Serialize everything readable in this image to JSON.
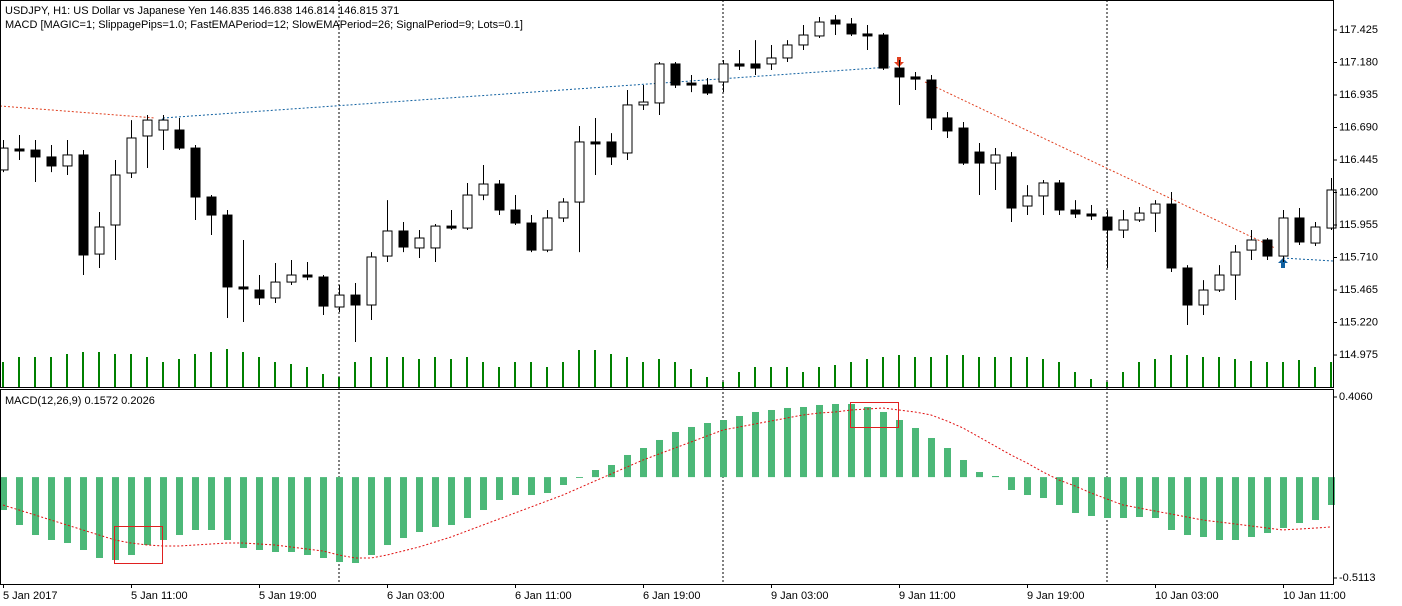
{
  "chart_data": [
    {
      "type": "candlestick",
      "title": "USDJPY, H1:  US Dollar vs Japanese Yen  146.835 146.838 146.814 146.815  371",
      "subtitle": "MACD [MAGIC=1; SlippagePips=1.0; FastEMAPeriod=12; SlowEMAPeriod=26; SignalPeriod=9; Lots=0.1]",
      "categories": [
        "5 Jan 2017",
        null,
        null,
        null,
        null,
        null,
        null,
        null,
        "5 Jan 11:00",
        null,
        null,
        null,
        null,
        null,
        null,
        null,
        "5 Jan 19:00",
        null,
        null,
        null,
        null,
        null,
        null,
        null,
        "6 Jan 03:00",
        null,
        null,
        null,
        null,
        null,
        null,
        null,
        "6 Jan 11:00",
        null,
        null,
        null,
        null,
        null,
        null,
        null,
        "6 Jan 19:00",
        null,
        null,
        null,
        null,
        null,
        null,
        null,
        "9 Jan 03:00",
        null,
        null,
        null,
        null,
        null,
        null,
        null,
        "9 Jan 11:00",
        null,
        null,
        null,
        null,
        null,
        null,
        null,
        "9 Jan 19:00",
        null,
        null,
        null,
        null,
        null,
        null,
        null,
        "10 Jan 03:00",
        null,
        null,
        null,
        null,
        null,
        null,
        null,
        "10 Jan 11:00",
        null,
        null,
        null
      ],
      "open": [
        116.37,
        116.528,
        116.52,
        116.468,
        116.4,
        116.483,
        115.736,
        115.955,
        116.347,
        116.626,
        116.671,
        116.671,
        116.535,
        116.166,
        116.03,
        115.488,
        115.465,
        115.405,
        115.525,
        115.578,
        115.563,
        115.337,
        115.427,
        115.352,
        115.721,
        115.91,
        115.782,
        115.782,
        115.947,
        115.932,
        116.181,
        116.264,
        116.068,
        115.97,
        115.766,
        116.008,
        116.128,
        116.581,
        116.581,
        116.498,
        116.86,
        116.875,
        117.169,
        117.025,
        117.01,
        117.033,
        117.169,
        117.169,
        117.169,
        117.214,
        117.312,
        117.38,
        117.5,
        117.47,
        117.395,
        117.387,
        117.138,
        117.071,
        117.048,
        116.762,
        116.686,
        116.505,
        116.422,
        116.468,
        116.098,
        116.174,
        116.272,
        116.068,
        116.038,
        116.015,
        115.917,
        115.993,
        116.045,
        116.113,
        115.631,
        115.352,
        115.465,
        115.578,
        115.766,
        115.842,
        115.721,
        116.008,
        115.819,
        115.932
      ],
      "high": [
        116.596,
        116.633,
        116.596,
        116.558,
        116.596,
        116.52,
        116.053,
        116.445,
        116.746,
        116.784,
        116.784,
        116.762,
        116.558,
        116.181,
        116.068,
        115.842,
        115.578,
        115.669,
        115.691,
        115.676,
        115.578,
        115.503,
        115.518,
        115.751,
        116.143,
        115.978,
        115.917,
        115.963,
        116.068,
        116.272,
        116.407,
        116.294,
        116.181,
        116.03,
        116.068,
        116.158,
        116.701,
        116.762,
        116.648,
        116.973,
        117.01,
        117.184,
        117.184,
        117.086,
        117.063,
        117.199,
        117.274,
        117.349,
        117.312,
        117.349,
        117.463,
        117.523,
        117.538,
        117.515,
        117.463,
        117.402,
        117.199,
        117.108,
        117.086,
        116.807,
        116.731,
        116.573,
        116.535,
        116.505,
        116.256,
        116.294,
        116.294,
        116.143,
        116.106,
        116.068,
        116.068,
        116.091,
        116.143,
        116.204,
        115.653,
        115.54,
        115.653,
        115.804,
        115.917,
        115.857,
        116.068,
        116.083,
        115.978,
        116.309
      ],
      "low": [
        116.354,
        116.445,
        116.279,
        116.354,
        116.332,
        115.578,
        115.631,
        115.691,
        116.309,
        116.385,
        116.52,
        116.52,
        115.993,
        115.88,
        115.254,
        115.224,
        115.352,
        115.367,
        115.503,
        115.54,
        115.277,
        115.299,
        115.073,
        115.239,
        115.676,
        115.751,
        115.706,
        115.676,
        115.917,
        115.917,
        116.143,
        116.03,
        115.955,
        115.751,
        115.751,
        115.978,
        115.751,
        116.332,
        116.407,
        116.445,
        116.822,
        116.784,
        116.988,
        116.957,
        116.935,
        116.957,
        117.123,
        117.086,
        117.123,
        117.184,
        117.274,
        117.365,
        117.387,
        117.38,
        117.274,
        117.123,
        116.86,
        116.973,
        116.671,
        116.611,
        116.407,
        116.181,
        116.219,
        115.978,
        116.03,
        116.03,
        116.03,
        116.008,
        115.993,
        115.631,
        115.857,
        115.978,
        115.902,
        115.601,
        115.201,
        115.277,
        115.45,
        115.39,
        115.691,
        115.691,
        115.676,
        115.804,
        115.797,
        115.917
      ],
      "close": [
        116.535,
        116.513,
        116.468,
        116.4,
        116.483,
        115.729,
        115.94,
        116.332,
        116.611,
        116.746,
        116.746,
        116.535,
        116.166,
        116.03,
        115.488,
        115.473,
        115.405,
        115.525,
        115.578,
        115.563,
        115.344,
        115.427,
        115.352,
        115.714,
        115.91,
        115.789,
        115.857,
        115.947,
        115.932,
        116.181,
        116.264,
        116.068,
        115.97,
        115.766,
        116.008,
        116.128,
        116.581,
        116.566,
        116.468,
        116.86,
        116.882,
        117.169,
        117.01,
        117.01,
        116.95,
        117.169,
        117.153,
        117.138,
        117.214,
        117.312,
        117.387,
        117.485,
        117.47,
        117.395,
        117.38,
        117.138,
        117.071,
        117.055,
        116.762,
        116.664,
        116.422,
        116.422,
        116.483,
        116.083,
        116.174,
        116.272,
        116.068,
        116.038,
        116.023,
        115.917,
        115.993,
        116.045,
        116.113,
        115.631,
        115.352,
        115.465,
        115.578,
        115.751,
        115.842,
        115.721,
        116.008,
        115.827,
        115.94,
        116.219
      ],
      "volume": [
        375,
        450,
        450,
        450,
        495,
        525,
        525,
        495,
        495,
        450,
        375,
        420,
        495,
        525,
        570,
        525,
        450,
        375,
        345,
        300,
        195,
        150,
        375,
        450,
        450,
        450,
        420,
        450,
        420,
        450,
        375,
        300,
        375,
        375,
        300,
        375,
        555,
        555,
        495,
        450,
        375,
        420,
        375,
        270,
        150,
        75,
        225,
        300,
        300,
        300,
        225,
        300,
        330,
        375,
        420,
        450,
        480,
        450,
        450,
        480,
        480,
        450,
        450,
        450,
        450,
        420,
        375,
        225,
        120,
        75,
        225,
        375,
        420,
        480,
        480,
        450,
        450,
        420,
        390,
        375,
        375,
        405,
        300,
        375
      ],
      "up_color": "#ffffff",
      "down_color": "#000000",
      "volume_color": "#008000",
      "ylim": [
        114.734,
        117.651
      ],
      "yticks": [
        117.425,
        {
          "value": 117.18,
          "label": "117.180"
        },
        116.935,
        {
          "value": 116.69,
          "label": "116.690"
        },
        116.445,
        {
          "value": 116.2,
          "label": "116.200"
        },
        115.955,
        {
          "value": 115.71,
          "label": "115.710"
        },
        115.465,
        {
          "value": 115.22,
          "label": "115.220"
        },
        114.975
      ]
    },
    {
      "type": "macd",
      "title": "MACD(12,26,9) 0.1572 0.2026",
      "values": [
        -0.1667,
        -0.2427,
        -0.2934,
        -0.3187,
        -0.3339,
        -0.3694,
        -0.4099,
        -0.4201,
        -0.3947,
        -0.3441,
        -0.3187,
        -0.2934,
        -0.268,
        -0.268,
        -0.3187,
        -0.3593,
        -0.3694,
        -0.3795,
        -0.3795,
        -0.3947,
        -0.4099,
        -0.4302,
        -0.4353,
        -0.3947,
        -0.3441,
        -0.3086,
        -0.2782,
        -0.2528,
        -0.2427,
        -0.2072,
        -0.1667,
        -0.116,
        -0.0907,
        -0.0907,
        -0.0805,
        -0.04,
        -0.0045,
        0.036,
        0.0614,
        0.1121,
        0.1475,
        0.1881,
        0.2286,
        0.254,
        0.2742,
        0.2894,
        0.3097,
        0.33,
        0.3401,
        0.3503,
        0.3553,
        0.3655,
        0.3705,
        0.3705,
        0.3553,
        0.33,
        0.2894,
        0.2489,
        0.1982,
        0.1475,
        0.0867,
        0.0259,
        0.0056,
        -0.0653,
        -0.0907,
        -0.1059,
        -0.1413,
        -0.1819,
        -0.1971,
        -0.2072,
        -0.2072,
        -0.2022,
        -0.2072,
        -0.268,
        -0.2934,
        -0.3035,
        -0.3187,
        -0.3187,
        -0.3035,
        -0.2832,
        -0.2579,
        -0.2326,
        -0.2174,
        -0.1413
      ],
      "color": "#4cb878",
      "signal": [
        -0.1413,
        -0.1667,
        -0.192,
        -0.2174,
        -0.2427,
        -0.268,
        -0.2934,
        -0.3187,
        -0.3339,
        -0.3441,
        -0.3491,
        -0.3491,
        -0.3441,
        -0.339,
        -0.3339,
        -0.3339,
        -0.339,
        -0.3441,
        -0.3542,
        -0.3643,
        -0.3745,
        -0.3947,
        -0.4099,
        -0.4099,
        -0.3947,
        -0.3745,
        -0.3542,
        -0.3289,
        -0.3035,
        -0.2731,
        -0.2427,
        -0.2123,
        -0.1819,
        -0.1515,
        -0.1211,
        -0.0907,
        -0.0552,
        -0.0197,
        0.0158,
        0.0512,
        0.0867,
        0.1171,
        0.1475,
        0.1779,
        0.2083,
        0.2388,
        0.254,
        0.2692,
        0.2844,
        0.2996,
        0.3148,
        0.3249,
        0.33,
        0.3401,
        0.3452,
        0.3503,
        0.3401,
        0.33,
        0.3148,
        0.2844,
        0.2489,
        0.2033,
        0.1577,
        0.1121,
        0.0715,
        0.0259,
        -0.0146,
        -0.0451,
        -0.0805,
        -0.1109,
        -0.1413,
        -0.1565,
        -0.1718,
        -0.187,
        -0.2022,
        -0.2174,
        -0.2275,
        -0.2376,
        -0.2478,
        -0.2579,
        -0.268,
        -0.263,
        -0.2579,
        -0.2528
      ],
      "signal_color": "#e01010",
      "ylim": [
        -0.5417,
        0.4465
      ],
      "yticks": [
        {
          "value": 0.406,
          "label": "0.4060"
        },
        -0.5113
      ]
    }
  ]
}
